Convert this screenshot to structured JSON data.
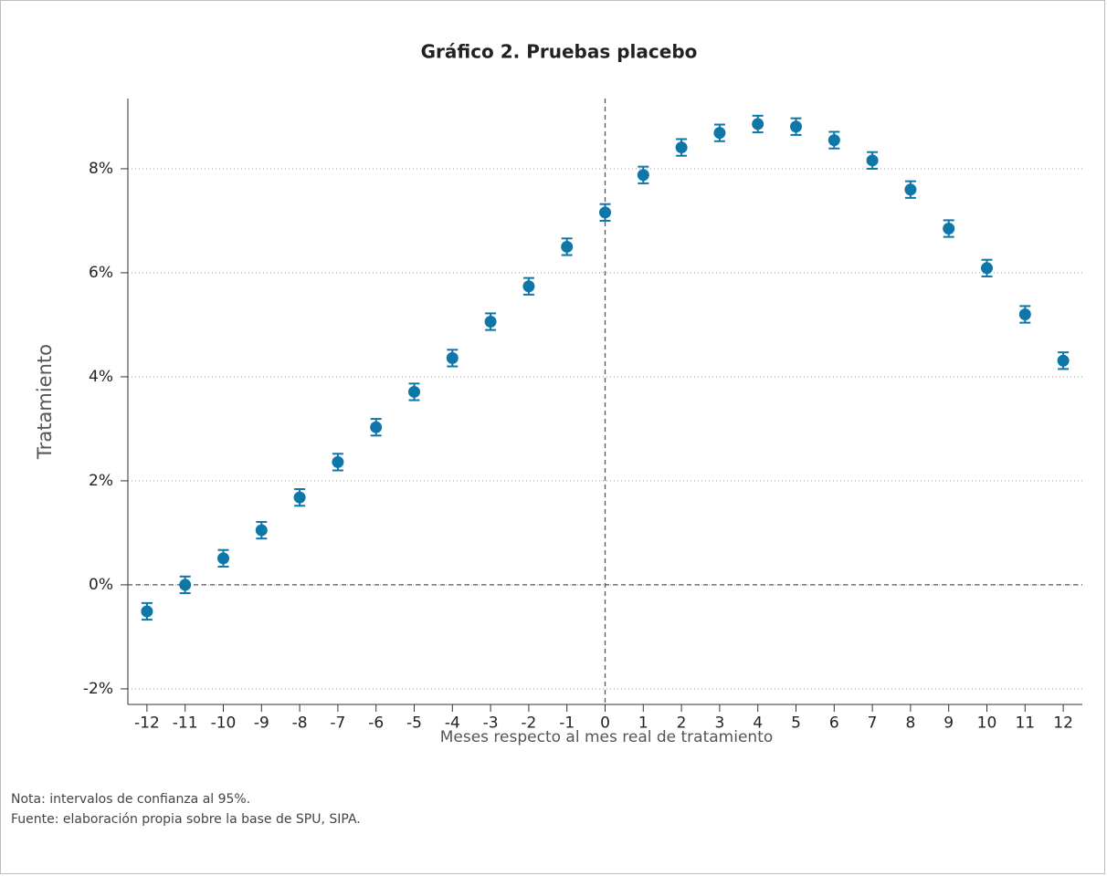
{
  "chart_data": {
    "type": "scatter",
    "title": "Gráfico 2. Pruebas placebo",
    "x_label": "Meses respecto al mes real de tratamiento",
    "y_label": "Tratamiento",
    "x": [
      -12,
      -11,
      -10,
      -9,
      -8,
      -7,
      -6,
      -5,
      -4,
      -3,
      -2,
      -1,
      0,
      1,
      2,
      3,
      4,
      5,
      6,
      7,
      8,
      9,
      10,
      11,
      12
    ],
    "series": [
      {
        "color": "#0f76a8",
        "values": [
          -0.51,
          0.0,
          0.51,
          1.05,
          1.68,
          2.36,
          3.03,
          3.71,
          4.36,
          5.06,
          5.74,
          6.5,
          7.16,
          7.88,
          8.41,
          8.69,
          8.86,
          8.81,
          8.55,
          8.16,
          7.6,
          6.85,
          6.09,
          5.2,
          4.31
        ],
        "errors": [
          0.16,
          0.16,
          0.16,
          0.16,
          0.16,
          0.16,
          0.16,
          0.16,
          0.16,
          0.16,
          0.16,
          0.16,
          0.16,
          0.16,
          0.16,
          0.16,
          0.16,
          0.16,
          0.16,
          0.16,
          0.16,
          0.16,
          0.16,
          0.16,
          0.16
        ]
      }
    ],
    "xlim": [
      -12.5,
      12.5
    ],
    "ylim": [
      -2.3,
      9.35
    ],
    "xticks": [
      -12,
      -11,
      -10,
      -9,
      -8,
      -7,
      -6,
      -5,
      -4,
      -3,
      -2,
      -1,
      0,
      1,
      2,
      3,
      4,
      5,
      6,
      7,
      8,
      9,
      10,
      11,
      12
    ],
    "yticks": [
      {
        "value": -2,
        "label": "-2%"
      },
      {
        "value": 0,
        "label": "0%"
      },
      {
        "value": 2,
        "label": "2%"
      },
      {
        "value": 4,
        "label": "4%"
      },
      {
        "value": 6,
        "label": "6%"
      },
      {
        "value": 8,
        "label": "8%"
      }
    ],
    "grid": true,
    "hline": 0,
    "vline": 0,
    "notes": [
      "Nota: intervalos de confianza al 95%.",
      "Fuente: elaboración propia sobre la base de SPU, SIPA."
    ]
  }
}
